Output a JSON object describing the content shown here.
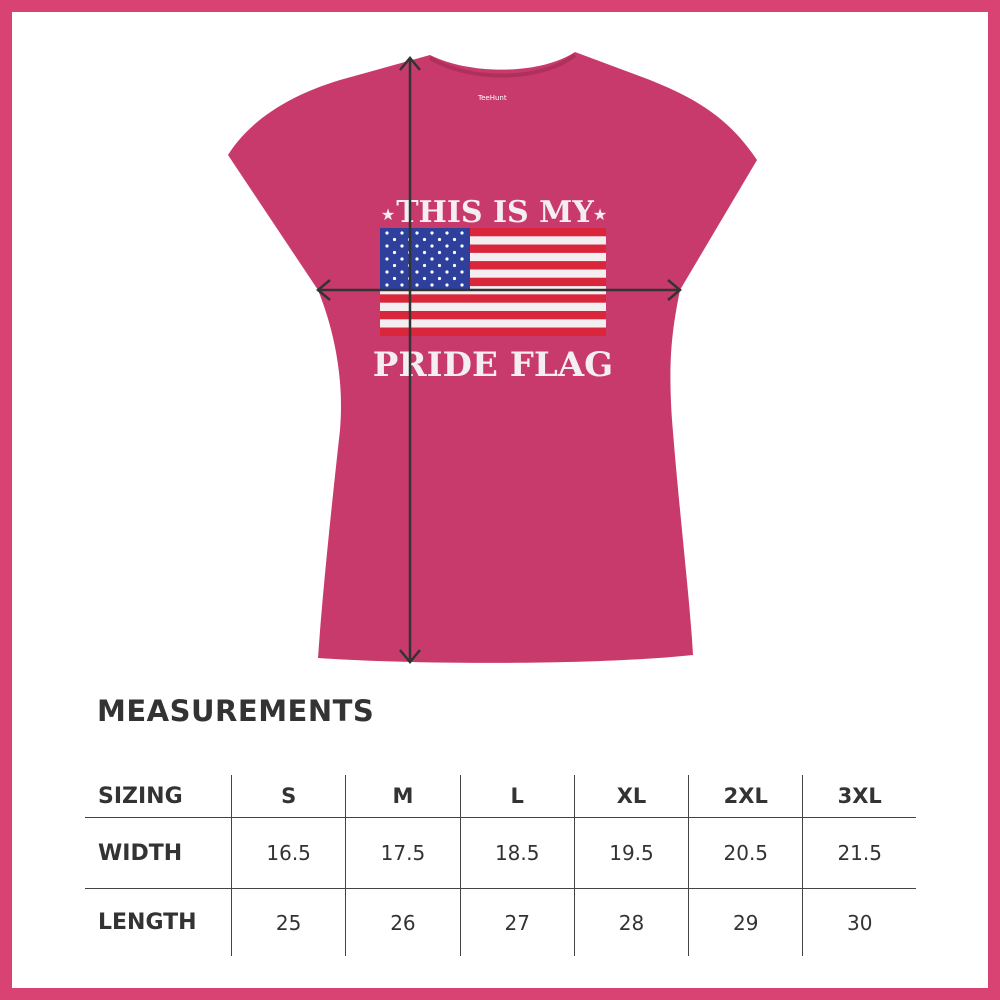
{
  "product": {
    "shirt_color": "#c93a6c",
    "border_color": "#d94373",
    "print_line1": "THIS IS MY",
    "print_line2": "PRIDE FLAG",
    "neck_label": "TeeHunt"
  },
  "measurements": {
    "title": "MEASUREMENTS",
    "header": [
      "SIZING",
      "S",
      "M",
      "L",
      "XL",
      "2XL",
      "3XL"
    ],
    "rows": [
      [
        "WIDTH",
        "16.5",
        "17.5",
        "18.5",
        "19.5",
        "20.5",
        "21.5"
      ],
      [
        "LENGTH",
        "25",
        "26",
        "27",
        "28",
        "29",
        "30"
      ]
    ]
  }
}
